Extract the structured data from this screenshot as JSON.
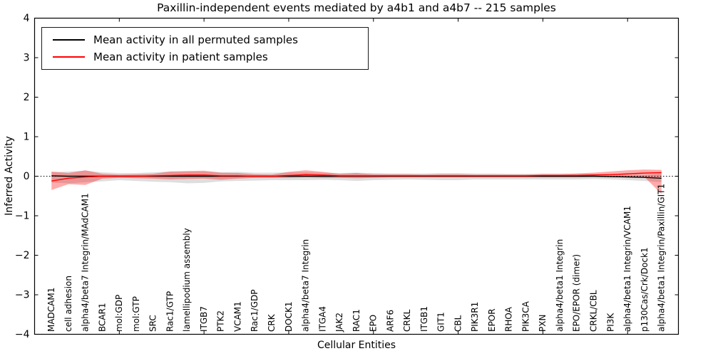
{
  "figure": {
    "background": "#ffffff"
  },
  "chart_data": {
    "type": "line",
    "title": "Paxillin-independent events mediated by a4b1 and a4b7 -- 215 samples",
    "xlabel": "Cellular Entities",
    "ylabel": "Inferred Activity",
    "ylim": [
      -4,
      4
    ],
    "xlim": [
      -1,
      37
    ],
    "y_ticks": [
      4,
      3,
      2,
      1,
      0,
      -1,
      -2,
      -3,
      -4
    ],
    "x_tick_indices": [
      4,
      9,
      14,
      19,
      24,
      29,
      34
    ],
    "grid": false,
    "legend_position": "upper left",
    "zero_line": {
      "style": "dotted",
      "color": "#000000",
      "y": 0
    },
    "categories": [
      "MADCAM1",
      "cell adhesion",
      "alpha4/beta7 Integrin/MAdCAM1",
      "BCAR1",
      "mol:GDP",
      "mol:GTP",
      "SRC",
      "Rac1/GTP",
      "lamellipodium assembly",
      "ITGB7",
      "PTK2",
      "VCAM1",
      "Rac1/GDP",
      "CRK",
      "DOCK1",
      "alpha4/beta7 Integrin",
      "ITGA4",
      "JAK2",
      "RAC1",
      "EPO",
      "ARF6",
      "CRKL",
      "ITGB1",
      "GIT1",
      "CBL",
      "PIK3R1",
      "EPOR",
      "RHOA",
      "PIK3CA",
      "PXN",
      "alpha4/beta1 Integrin",
      "EPO/EPOR (dimer)",
      "CRKL/CBL",
      "PI3K",
      "alpha4/beta1 Integrin/VCAM1",
      "p130Cas/Crk/Dock1",
      "alpha4/beta1 Integrin/Paxillin/GIT1"
    ],
    "series": [
      {
        "key": "permuted",
        "name": "Mean activity in all permuted samples",
        "color": "#000000",
        "band_color": "#000000",
        "band_opacity": 0.13,
        "values": [
          0.01,
          0,
          0,
          0,
          0,
          0,
          0,
          0,
          0,
          0,
          0,
          0,
          0,
          0,
          0,
          0,
          0,
          0,
          0,
          0,
          0,
          0,
          0,
          0,
          0,
          0,
          0,
          0,
          0,
          0,
          0,
          0,
          0,
          -0.01,
          -0.02,
          -0.03,
          -0.05
        ],
        "band_lower": [
          -0.16,
          -0.18,
          -0.15,
          -0.13,
          -0.1,
          -0.12,
          -0.14,
          -0.15,
          -0.18,
          -0.17,
          -0.13,
          -0.12,
          -0.11,
          -0.1,
          -0.1,
          -0.1,
          -0.09,
          -0.1,
          -0.12,
          -0.1,
          -0.09,
          -0.08,
          -0.09,
          -0.1,
          -0.1,
          -0.08,
          -0.08,
          -0.08,
          -0.08,
          -0.08,
          -0.08,
          -0.08,
          -0.07,
          -0.08,
          -0.1,
          -0.12,
          -0.15
        ],
        "band_upper": [
          0.1,
          0.12,
          0.14,
          0.1,
          0.08,
          0.08,
          0.1,
          0.12,
          0.12,
          0.12,
          0.1,
          0.11,
          0.09,
          0.09,
          0.1,
          0.1,
          0.09,
          0.08,
          0.09,
          0.08,
          0.07,
          0.07,
          0.07,
          0.08,
          0.08,
          0.07,
          0.07,
          0.06,
          0.06,
          0.07,
          0.07,
          0.06,
          0.06,
          0.05,
          0.04,
          0.03,
          0.06
        ]
      },
      {
        "key": "patient",
        "name": "Mean activity in patient samples",
        "color": "#ff0000",
        "band_color": "#ff0000",
        "band_opacity": 0.33,
        "values": [
          -0.12,
          -0.05,
          -0.02,
          0,
          0,
          0,
          0.01,
          0.02,
          0.03,
          0.03,
          0.01,
          0.01,
          0,
          0,
          0.02,
          0.04,
          0.03,
          0.01,
          0.01,
          0.01,
          0.01,
          0.01,
          0.01,
          0.01,
          0.01,
          0.01,
          0.01,
          0.01,
          0.01,
          0.02,
          0.02,
          0.02,
          0.03,
          0.04,
          0.06,
          0.08,
          0.09
        ],
        "band_lower": [
          -0.35,
          -0.2,
          -0.22,
          -0.06,
          -0.04,
          -0.05,
          -0.06,
          -0.08,
          -0.07,
          -0.06,
          -0.09,
          -0.06,
          -0.04,
          -0.04,
          -0.04,
          -0.03,
          -0.04,
          -0.04,
          -0.05,
          -0.04,
          -0.03,
          -0.03,
          -0.03,
          -0.03,
          -0.03,
          -0.03,
          -0.03,
          -0.03,
          -0.03,
          -0.03,
          -0.03,
          -0.03,
          -0.02,
          -0.02,
          -0.02,
          -0.02,
          -0.45
        ],
        "band_upper": [
          0.12,
          0.08,
          0.15,
          0.06,
          0.04,
          0.05,
          0.06,
          0.12,
          0.13,
          0.14,
          0.09,
          0.08,
          0.05,
          0.04,
          0.11,
          0.15,
          0.11,
          0.06,
          0.08,
          0.05,
          0.05,
          0.05,
          0.04,
          0.05,
          0.05,
          0.04,
          0.04,
          0.04,
          0.04,
          0.05,
          0.05,
          0.07,
          0.09,
          0.12,
          0.15,
          0.17,
          0.16
        ]
      }
    ]
  }
}
